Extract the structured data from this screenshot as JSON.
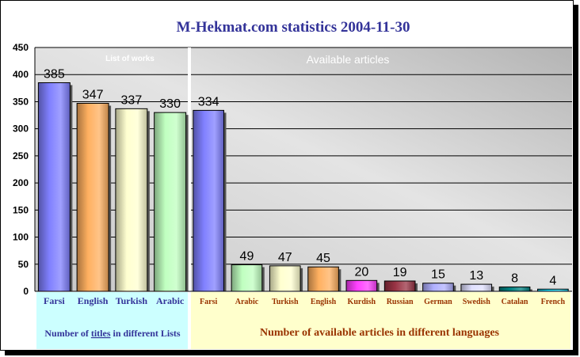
{
  "chart_data": {
    "type": "bar",
    "title": "M-Hekmat.com  statistics 2004-11-30",
    "ylim": [
      0,
      450
    ],
    "yticks": [
      0,
      50,
      100,
      150,
      200,
      250,
      300,
      350,
      400,
      450
    ],
    "grid": true,
    "panels": [
      {
        "title": "List of works",
        "footer_parts": [
          "Number of ",
          "titles",
          "  in different Lists"
        ],
        "categories": [
          "Farsi",
          "English",
          "Turkish",
          "Arabic"
        ],
        "values": [
          385,
          347,
          337,
          330
        ]
      },
      {
        "title": "Available articles",
        "footer": "Number of available articles in different languages",
        "categories": [
          "Farsi",
          "Arabic",
          "Turkish",
          "English",
          "Kurdish",
          "Russian",
          "German",
          "Swedish",
          "Catalan",
          "French"
        ],
        "values": [
          334,
          49,
          47,
          45,
          20,
          19,
          15,
          13,
          8,
          4
        ]
      }
    ],
    "colors": {
      "Farsi": "#8080ff",
      "English": "#ffb060",
      "Turkish": "#ffffd0",
      "Arabic": "#c0ffc0",
      "Kurdish": "#ff40ff",
      "Russian": "#993344",
      "German": "#b0b0ff",
      "Swedish": "#e0e0ff",
      "Catalan": "#008080",
      "French": "#20e0ff"
    }
  }
}
